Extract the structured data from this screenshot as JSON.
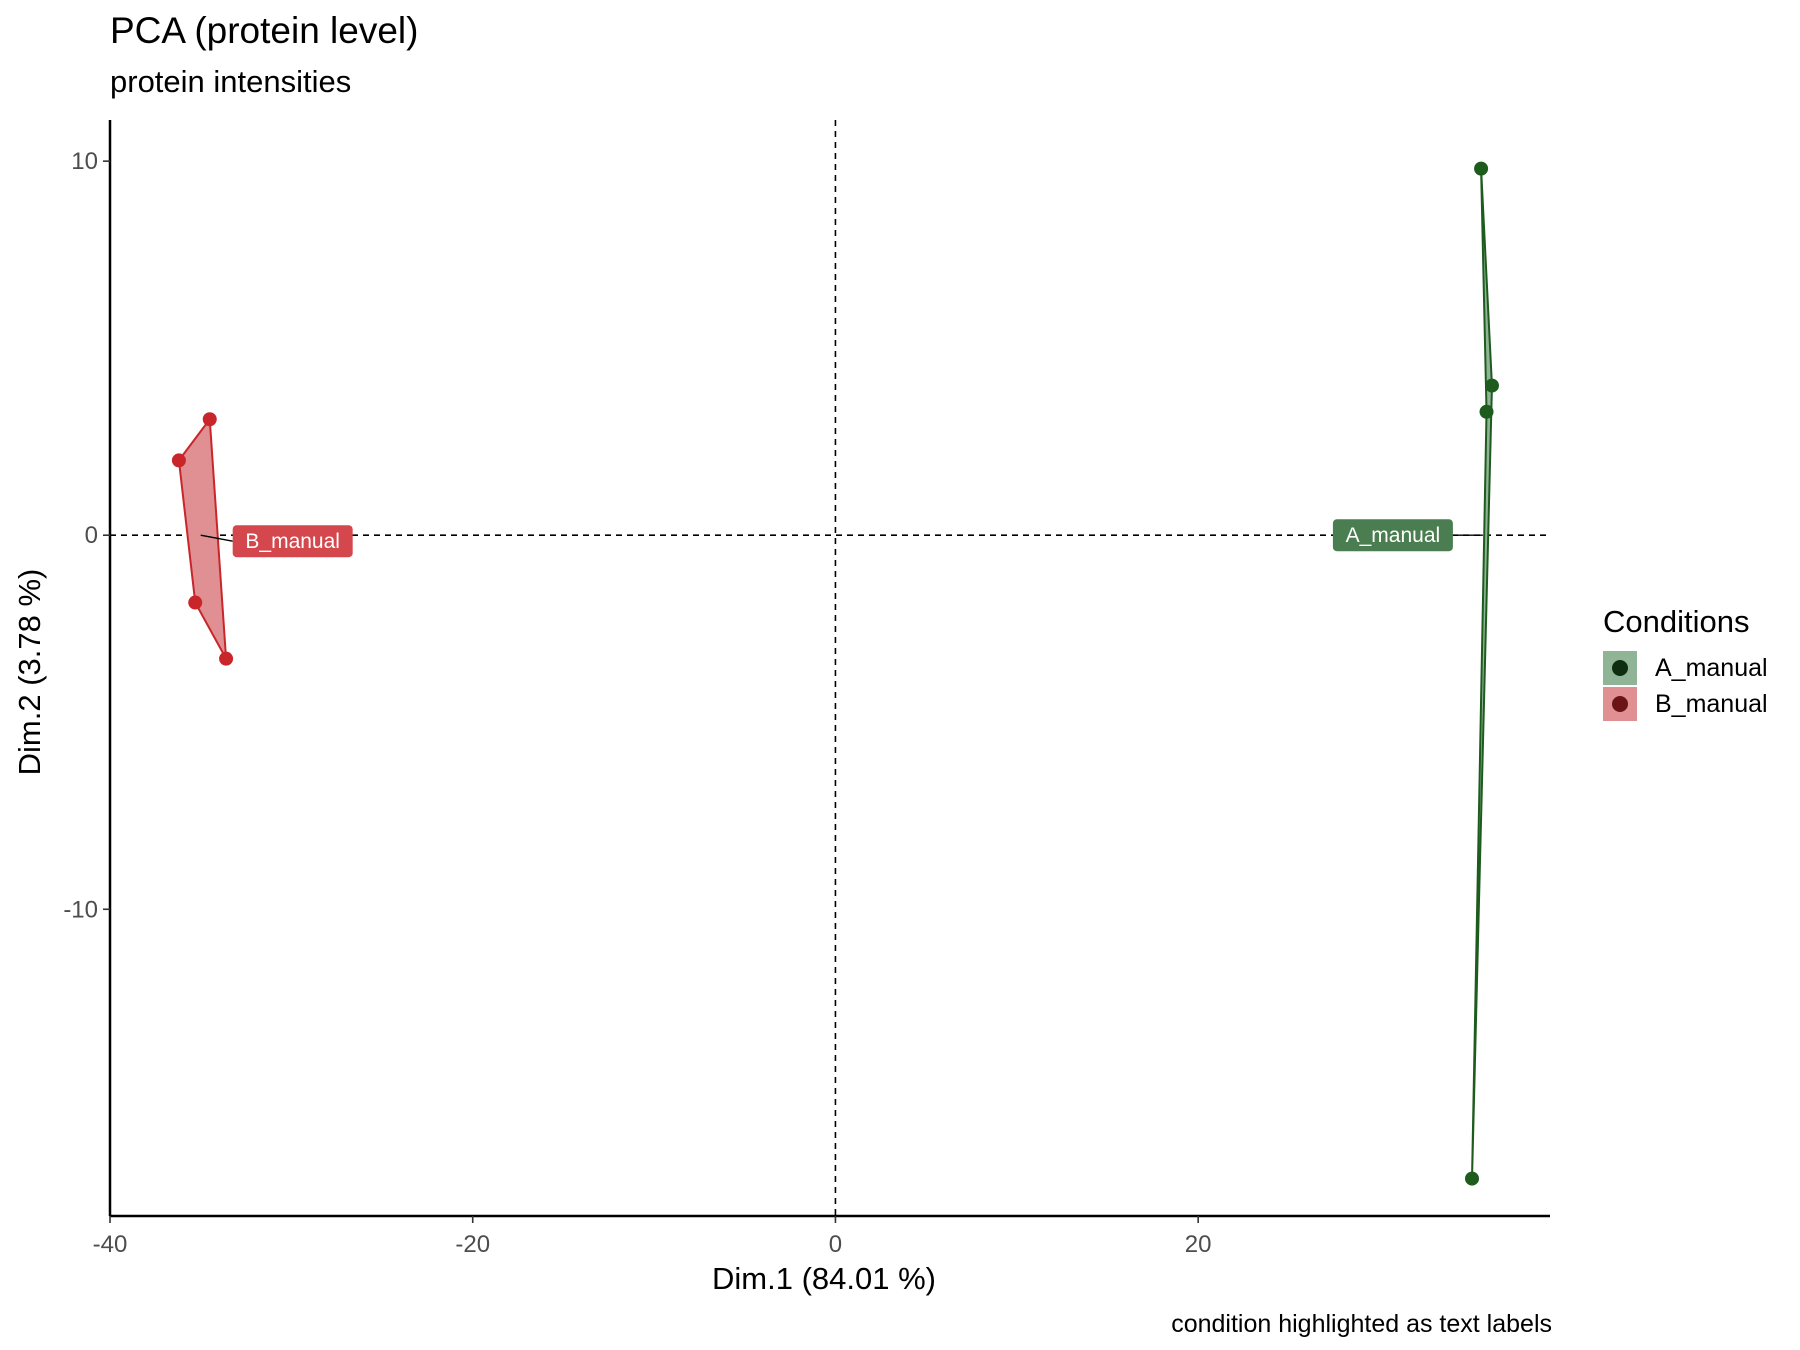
{
  "title": "PCA (protein level)",
  "subtitle": "protein intensities",
  "caption": "condition highlighted as text labels",
  "legend_title": "Conditions",
  "chart_data": {
    "type": "scatter",
    "title": "PCA (protein level)",
    "subtitle": "protein intensities",
    "xlabel": "Dim.1 (84.01 %)",
    "ylabel": "Dim.2 (3.78 %)",
    "xlim": [
      -40,
      39.4
    ],
    "ylim": [
      -18.2,
      11.1
    ],
    "x_ticks": [
      -40,
      -20,
      0,
      20
    ],
    "x_tick_labels": [
      "-40",
      "-20",
      "0",
      "20"
    ],
    "y_ticks": [
      10,
      0,
      -10
    ],
    "y_tick_labels": [
      "10",
      "0",
      "-10"
    ],
    "reference_lines": {
      "x": 0,
      "y": 0,
      "style": "dashed"
    },
    "grid": false,
    "legend_position": "right",
    "series": [
      {
        "name": "A_manual",
        "color": "#1e5c1e",
        "fill": "#8fb496",
        "points": [
          [
            35.6,
            9.8
          ],
          [
            36.2,
            4.0
          ],
          [
            35.9,
            3.3
          ],
          [
            35.1,
            -17.2
          ]
        ],
        "hull": [
          [
            35.6,
            9.8
          ],
          [
            36.2,
            4.0
          ],
          [
            35.1,
            -17.2
          ],
          [
            35.9,
            3.3
          ]
        ],
        "centroid": [
          35.7,
          -0.0
        ],
        "label": "A_manual",
        "label_color": "#4a7d4f"
      },
      {
        "name": "B_manual",
        "color": "#c8262a",
        "fill": "#e09092",
        "points": [
          [
            -36.2,
            2.0
          ],
          [
            -34.5,
            3.1
          ],
          [
            -35.3,
            -1.8
          ],
          [
            -33.6,
            -3.3
          ]
        ],
        "hull": [
          [
            -36.2,
            2.0
          ],
          [
            -34.5,
            3.1
          ],
          [
            -33.6,
            -3.3
          ],
          [
            -35.3,
            -1.8
          ]
        ],
        "centroid": [
          -35.0,
          0.0
        ],
        "label": "B_manual",
        "label_color": "#d4474c"
      }
    ]
  }
}
